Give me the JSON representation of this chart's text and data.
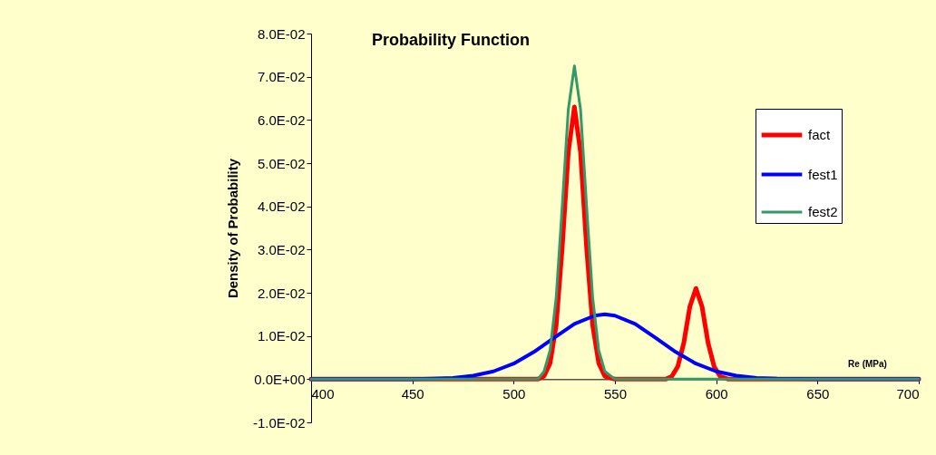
{
  "chart_data": {
    "type": "line",
    "title": "Probability Function",
    "xlabel": "Re (MPa)",
    "ylabel": "Density of Probability",
    "xlim": [
      400,
      700
    ],
    "xticks": [
      400,
      450,
      500,
      550,
      600,
      650,
      700
    ],
    "ylim": [
      -0.01,
      0.08
    ],
    "yticks": [
      {
        "value": -0.01,
        "label": "-1.0E-02"
      },
      {
        "value": 0,
        "label": "0.0E+00"
      },
      {
        "value": 0.01,
        "label": "1.0E-02"
      },
      {
        "value": 0.02,
        "label": "2.0E-02"
      },
      {
        "value": 0.03,
        "label": "3.0E-02"
      },
      {
        "value": 0.04,
        "label": "4.0E-02"
      },
      {
        "value": 0.05,
        "label": "5.0E-02"
      },
      {
        "value": 0.06,
        "label": "6.0E-02"
      },
      {
        "value": 0.07,
        "label": "7.0E-02"
      },
      {
        "value": 0.08,
        "label": "8.0E-02"
      }
    ],
    "grid": false,
    "legend": "top right",
    "marker": "none",
    "line_style": "solid",
    "series": [
      {
        "name": "fact",
        "color": "#ff0000",
        "x": [
          400,
          512,
          515,
          518,
          521,
          524,
          527,
          530,
          533,
          536,
          539,
          542,
          545,
          550,
          575,
          578,
          581,
          584,
          587,
          590,
          593,
          596,
          599,
          602,
          606,
          700
        ],
        "values": [
          0,
          0,
          0.0007,
          0.0037,
          0.0125,
          0.0306,
          0.0526,
          0.063,
          0.0526,
          0.0306,
          0.0125,
          0.0037,
          0.0007,
          0,
          0,
          0.0006,
          0.0029,
          0.0084,
          0.0168,
          0.021,
          0.0168,
          0.0084,
          0.0029,
          0.0006,
          0,
          0
        ]
      },
      {
        "name": "fest1",
        "color": "#0000ff",
        "x": [
          400,
          450,
          460,
          470,
          480,
          490,
          500,
          510,
          520,
          530,
          540,
          545,
          550,
          560,
          570,
          580,
          590,
          600,
          610,
          620,
          630,
          650,
          700
        ],
        "values": [
          0,
          0,
          0.0001,
          0.0003,
          0.0008,
          0.0018,
          0.0036,
          0.0063,
          0.0096,
          0.0128,
          0.0147,
          0.015,
          0.0147,
          0.0128,
          0.0096,
          0.0063,
          0.0036,
          0.0018,
          0.0008,
          0.0003,
          0.0001,
          0,
          0
        ]
      },
      {
        "name": "fest2",
        "color": "#339966",
        "x": [
          400,
          512,
          515,
          518,
          521,
          524,
          527,
          530,
          533,
          536,
          539,
          542,
          545,
          550,
          700
        ],
        "values": [
          0,
          0,
          0.0018,
          0.0067,
          0.0189,
          0.0401,
          0.0625,
          0.0725,
          0.0625,
          0.0401,
          0.0189,
          0.0067,
          0.0018,
          0,
          0
        ]
      }
    ]
  }
}
